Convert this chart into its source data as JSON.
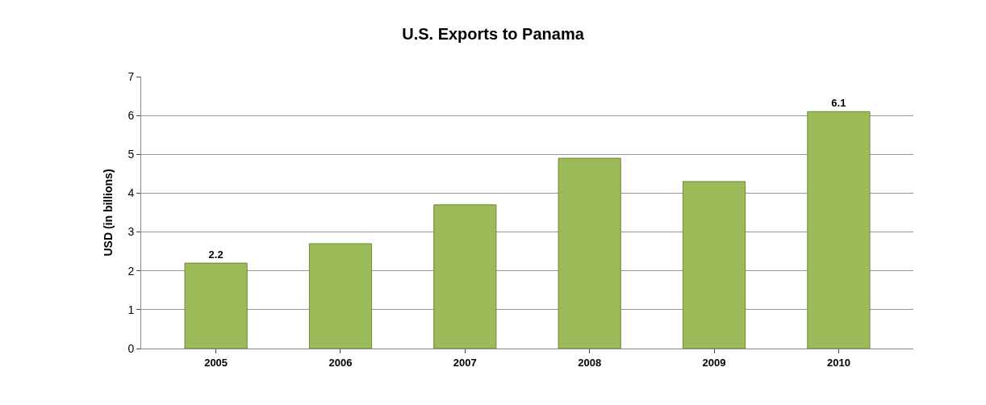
{
  "chart_data": {
    "type": "bar",
    "title": "U.S. Exports to Panama",
    "ylabel": "USD (in billions)",
    "categories": [
      "2005",
      "2006",
      "2007",
      "2008",
      "2009",
      "2010"
    ],
    "values": [
      2.2,
      2.7,
      3.7,
      4.9,
      4.3,
      6.1
    ],
    "value_labels": [
      "2.2",
      null,
      null,
      null,
      null,
      "6.1"
    ],
    "color": "#9bbb59",
    "ylim": [
      0,
      7
    ],
    "yticks": [
      0,
      1,
      2,
      3,
      4,
      5,
      6,
      7
    ],
    "grid": "y"
  }
}
